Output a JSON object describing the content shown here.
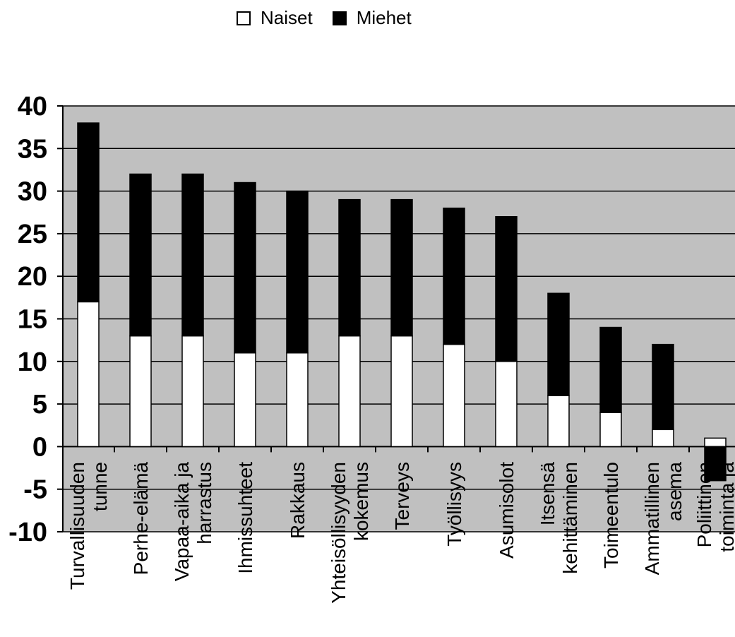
{
  "legend": {
    "naiset": "Naiset",
    "miehet": "Miehet"
  },
  "colors": {
    "naiset": "#ffffff",
    "miehet": "#000000",
    "plot_background": "#c0c0c0",
    "grid": "#000000"
  },
  "chart_data": {
    "type": "bar",
    "stacked": true,
    "categories": [
      [
        "Turvallisuuden",
        "tunne"
      ],
      [
        "Perhe-elämä"
      ],
      [
        "Vapaa-aika ja",
        "harrastus"
      ],
      [
        "Ihmissuhteet"
      ],
      [
        "Rakkaus"
      ],
      [
        "Yhteisöllisyyden",
        "kokemus"
      ],
      [
        "Terveys"
      ],
      [
        "Työllisyys"
      ],
      [
        "Asumisolot"
      ],
      [
        "Itsensä",
        "kehittäminen"
      ],
      [
        "Toimeentulo"
      ],
      [
        "Ammatillinen",
        "asema"
      ],
      [
        "Poliittinen",
        "toiminta ja"
      ]
    ],
    "series": [
      {
        "name": "Naiset",
        "values": [
          17,
          13,
          13,
          11,
          11,
          13,
          13,
          12,
          10,
          6,
          4,
          2,
          1
        ]
      },
      {
        "name": "Miehet",
        "values": [
          21,
          19,
          19,
          20,
          19,
          16,
          16,
          16,
          17,
          12,
          10,
          10,
          -4
        ]
      }
    ],
    "ylim": [
      -10,
      40
    ],
    "yticks": [
      40,
      35,
      30,
      25,
      20,
      15,
      10,
      5,
      0,
      -5,
      -10
    ],
    "grid": true,
    "legend_position": "top"
  }
}
